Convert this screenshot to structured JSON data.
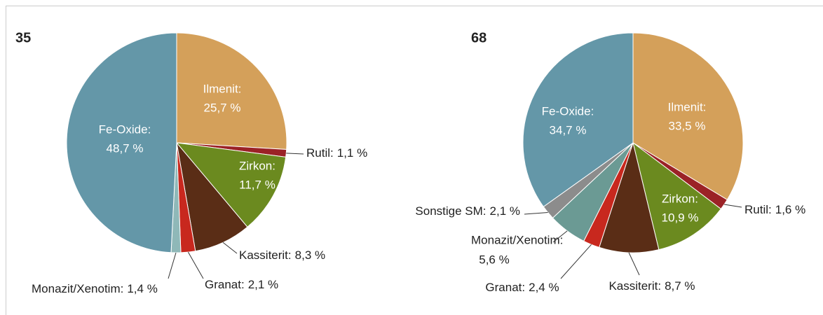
{
  "chart_data": [
    {
      "type": "pie",
      "title": "35",
      "categories": [
        "Ilmenit:",
        "Rutil:",
        "Zirkon:",
        "Kassiterit:",
        "Granat:",
        "Monazit/Xenotim:",
        "Fe-Oxide:"
      ],
      "values": [
        25.7,
        1.1,
        11.7,
        8.3,
        2.1,
        1.4,
        48.7
      ],
      "value_labels": [
        "25,7 %",
        "1,1 %",
        "11,7 %",
        "8,3 %",
        "2,1 %",
        "1,4 %",
        "48,7 %"
      ],
      "colors": [
        "#d4a05a",
        "#9b2226",
        "#6b8a1f",
        "#5a2d16",
        "#c8281e",
        "#8fb8b8",
        "#6497a8"
      ]
    },
    {
      "type": "pie",
      "title": "68",
      "categories": [
        "Ilmenit:",
        "Rutil:",
        "Zirkon:",
        "Kassiterit:",
        "Granat:",
        "Monazit/Xenotim:",
        "Sonstige SM:",
        "Fe-Oxide:"
      ],
      "values": [
        33.5,
        1.6,
        10.9,
        8.7,
        2.4,
        5.6,
        2.1,
        34.7
      ],
      "value_labels": [
        "33,5 %",
        "1,6 %",
        "10,9 %",
        "8,7 %",
        "2,4 %",
        "5,6 %",
        "2,1 %",
        "34,7 %"
      ],
      "colors": [
        "#d4a05a",
        "#9b2226",
        "#6b8a1f",
        "#5a2d16",
        "#c8281e",
        "#6b9a94",
        "#8c8c8c",
        "#6497a8"
      ]
    }
  ]
}
